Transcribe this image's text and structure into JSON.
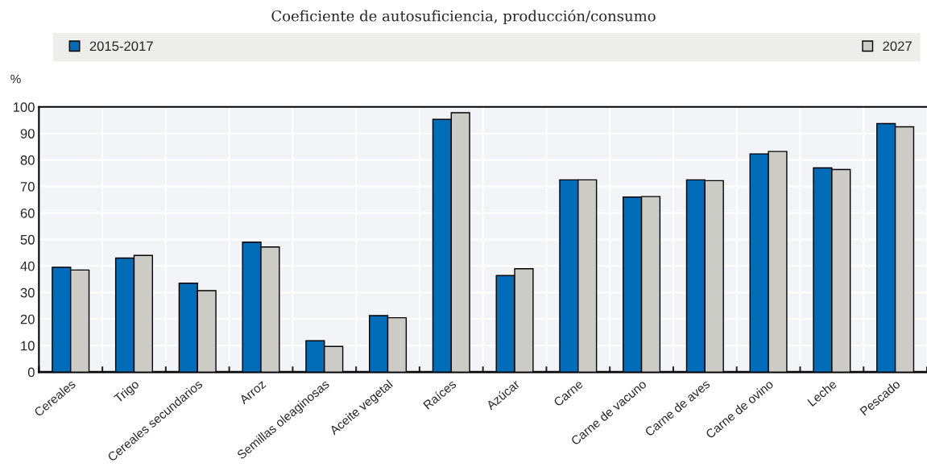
{
  "chart_data": {
    "type": "bar",
    "subtitle": "Coeficiente de autosuficiencia, producción/consumo",
    "ylabel": "%",
    "categories": [
      "Cereales",
      "Trigo",
      "Cereales secundarios",
      "Arroz",
      "Semillas oleaginosas",
      "Aceite vegetal",
      "Raíces",
      "Azúcar",
      "Carne",
      "Carne de vacuno",
      "Carne de aves",
      "Carne de ovino",
      "Leche",
      "Pescado"
    ],
    "series": [
      {
        "name": "2015-2017",
        "color": "#006bb6",
        "values": [
          39.5,
          43,
          33.5,
          49,
          11.8,
          21.3,
          95.3,
          36.4,
          72.5,
          66,
          72.5,
          82.3,
          77,
          93.7
        ]
      },
      {
        "name": "2027",
        "color": "#cdcbc6",
        "values": [
          38.5,
          44,
          30.7,
          47.2,
          9.7,
          20.5,
          97.8,
          39,
          72.5,
          66.2,
          72.2,
          83.2,
          76.4,
          92.5
        ]
      }
    ],
    "ylim": [
      0,
      100
    ],
    "yticks": [
      0,
      10,
      20,
      30,
      40,
      50,
      60,
      70,
      80,
      90,
      100
    ],
    "grid": true,
    "legend": "top"
  }
}
